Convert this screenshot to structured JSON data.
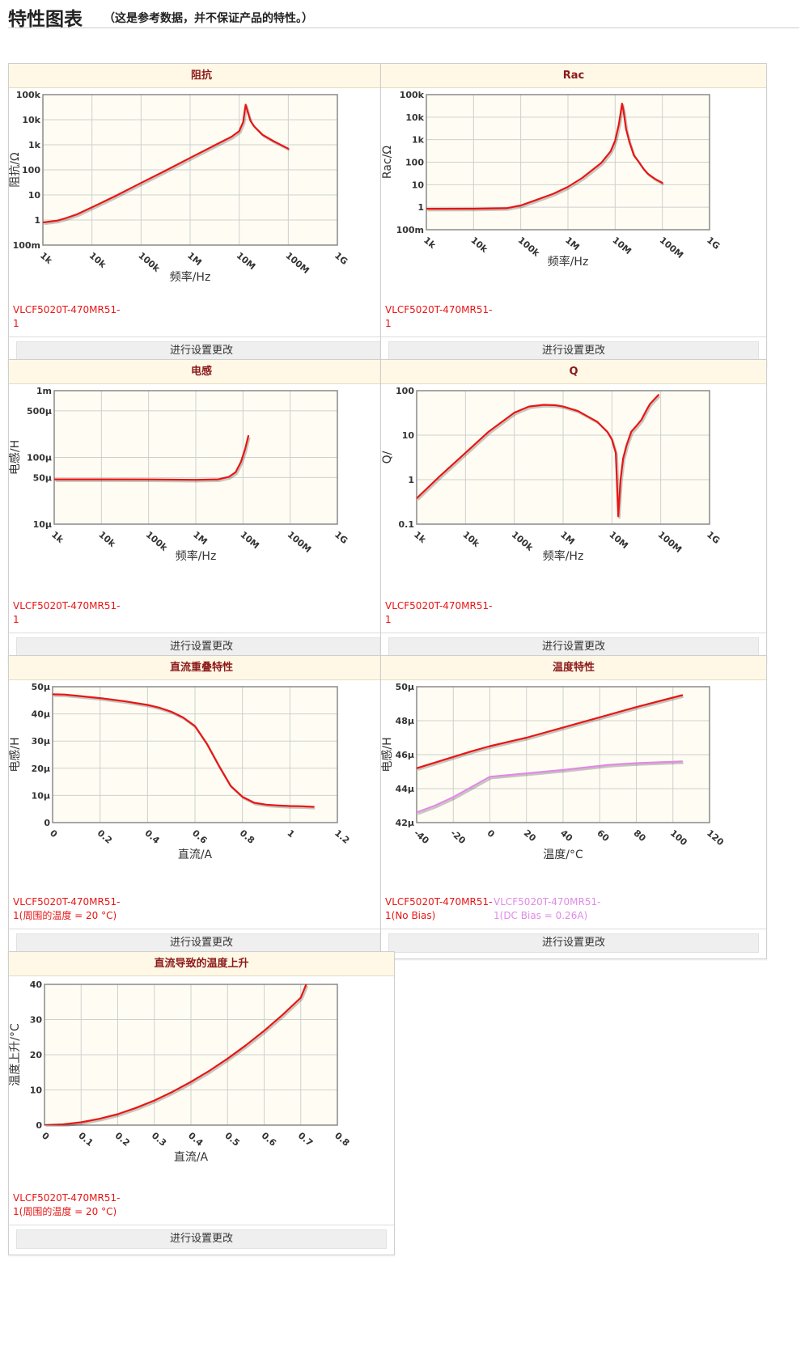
{
  "page": {
    "title": "特性图表",
    "subtitle": "（这是参考数据，并不保证产品的特性。）",
    "button_label": "进行设置更改"
  },
  "colors": {
    "red": "#e81515",
    "violet": "#e08ae6",
    "header_bg": "#fff8e6",
    "title_red": "#8b1a1a",
    "plot_bg": "#fffdf3"
  },
  "panels": [
    {
      "title": "阻抗",
      "legend": [
        {
          "text": "VLCF5020T-470MR51-1",
          "color": "#e81515"
        }
      ]
    },
    {
      "title": "Rac",
      "legend": [
        {
          "text": "VLCF5020T-470MR51-1",
          "color": "#e81515"
        }
      ]
    },
    {
      "title": "电感",
      "legend": [
        {
          "text": "VLCF5020T-470MR51-1",
          "color": "#e81515"
        }
      ]
    },
    {
      "title": "Q",
      "legend": [
        {
          "text": "VLCF5020T-470MR51-1",
          "color": "#e81515"
        }
      ]
    },
    {
      "title": "直流重叠特性",
      "legend": [
        {
          "text": "VLCF5020T-470MR51-1(周围的温度 = 20 °C)",
          "color": "#e81515"
        }
      ]
    },
    {
      "title": "温度特性",
      "legend": [
        {
          "text": "VLCF5020T-470MR51-1(No Bias)",
          "color": "#e81515"
        },
        {
          "text": "VLCF5020T-470MR51-1(DC Bias = 0.26A)",
          "color": "#e08ae6"
        }
      ]
    },
    {
      "title": "直流导致的温度上升",
      "legend": [
        {
          "text": "VLCF5020T-470MR51-1(周围的温度 = 20 °C)",
          "color": "#e81515"
        }
      ]
    }
  ],
  "chart_data": [
    {
      "type": "line",
      "title": "阻抗",
      "xscale": "log",
      "yscale": "log",
      "xlabel": "频率/Hz",
      "ylabel": "阻抗/Ω",
      "xlim": [
        1000,
        1000000000
      ],
      "ylim": [
        0.1,
        100000
      ],
      "xticks": [
        1000,
        10000,
        100000,
        1000000,
        10000000,
        100000000,
        1000000000
      ],
      "xtick_labels": [
        "1k",
        "10k",
        "100k",
        "1M",
        "10M",
        "100M",
        "1G"
      ],
      "yticks": [
        0.1,
        1,
        10,
        100,
        1000,
        10000,
        100000
      ],
      "ytick_labels": [
        "100m",
        "1",
        "10",
        "100",
        "1k",
        "10k",
        "100k"
      ],
      "series": [
        {
          "name": "VLCF5020T-470MR51-1",
          "color": "#e81515",
          "x": [
            1000,
            2000,
            3000,
            5000,
            10000,
            30000,
            100000,
            300000,
            1000000,
            3000000,
            7000000,
            10000000,
            12000000,
            13500000,
            15000000,
            17000000,
            20000000,
            30000000,
            50000000,
            100000000
          ],
          "y": [
            0.8,
            0.95,
            1.2,
            1.7,
            3.2,
            9,
            30,
            89,
            300,
            900,
            2100,
            3500,
            8000,
            40000,
            20000,
            9000,
            5500,
            2500,
            1400,
            700
          ]
        }
      ]
    },
    {
      "type": "line",
      "title": "Rac",
      "xscale": "log",
      "yscale": "log",
      "xlabel": "频率/Hz",
      "ylabel": "Rac/Ω",
      "xlim": [
        1000,
        1000000000
      ],
      "ylim": [
        0.1,
        100000
      ],
      "xticks": [
        1000,
        10000,
        100000,
        1000000,
        10000000,
        100000000,
        1000000000
      ],
      "xtick_labels": [
        "1k",
        "10k",
        "100k",
        "1M",
        "10M",
        "100M",
        "1G"
      ],
      "yticks": [
        0.1,
        1,
        10,
        100,
        1000,
        10000,
        100000
      ],
      "ytick_labels": [
        "100m",
        "1",
        "10",
        "100",
        "1k",
        "10k",
        "100k"
      ],
      "series": [
        {
          "name": "VLCF5020T-470MR51-1",
          "color": "#e81515",
          "x": [
            1000,
            10000,
            50000,
            100000,
            200000,
            500000,
            1000000,
            2000000,
            5000000,
            8000000,
            10000000,
            12000000,
            14000000,
            15000000,
            17000000,
            20000000,
            25000000,
            30000000,
            40000000,
            50000000,
            70000000,
            100000000
          ],
          "y": [
            0.85,
            0.86,
            0.9,
            1.2,
            2,
            4,
            8,
            20,
            90,
            300,
            900,
            5000,
            40000,
            20000,
            3000,
            800,
            200,
            120,
            50,
            30,
            18,
            12
          ]
        }
      ]
    },
    {
      "type": "line",
      "title": "电感",
      "xscale": "log",
      "yscale": "log",
      "xlabel": "频率/Hz",
      "ylabel": "电感/H",
      "xlim": [
        1000,
        1000000000
      ],
      "ylim": [
        1e-05,
        0.001
      ],
      "xticks": [
        1000,
        10000,
        100000,
        1000000,
        10000000,
        100000000,
        1000000000
      ],
      "xtick_labels": [
        "1k",
        "10k",
        "100k",
        "1M",
        "10M",
        "100M",
        "1G"
      ],
      "yticks": [
        1e-05,
        5e-05,
        0.0001,
        0.0005,
        0.001
      ],
      "ytick_labels": [
        "10μ",
        "50μ",
        "100μ",
        "500μ",
        "1m"
      ],
      "series": [
        {
          "name": "VLCF5020T-470MR51-1",
          "color": "#e81515",
          "x": [
            1000,
            10000,
            100000,
            1000000,
            3000000,
            5000000,
            7000000,
            9000000,
            11000000,
            13000000
          ],
          "y": [
            4.7e-05,
            4.7e-05,
            4.68e-05,
            4.62e-05,
            4.7e-05,
            5.1e-05,
            6e-05,
            8.5e-05,
            0.00013,
            0.00021
          ]
        }
      ]
    },
    {
      "type": "line",
      "title": "Q",
      "xscale": "log",
      "yscale": "log",
      "xlabel": "频率/Hz",
      "ylabel": "Q/",
      "xlim": [
        1000,
        1000000000
      ],
      "ylim": [
        0.1,
        100
      ],
      "xticks": [
        1000,
        10000,
        100000,
        1000000,
        10000000,
        100000000,
        1000000000
      ],
      "xtick_labels": [
        "1k",
        "10k",
        "100k",
        "1M",
        "10M",
        "100M",
        "1G"
      ],
      "yticks": [
        0.1,
        1,
        10,
        100
      ],
      "ytick_labels": [
        "0.1",
        "1",
        "10",
        "100"
      ],
      "series": [
        {
          "name": "VLCF5020T-470MR51-1",
          "color": "#e81515",
          "x": [
            1000,
            3000,
            10000,
            30000,
            100000,
            200000,
            400000,
            700000,
            1000000,
            2000000,
            5000000,
            8000000,
            10000000,
            12000000,
            13500000,
            15000000,
            17000000,
            20000000,
            25000000,
            30000000,
            40000000,
            50000000,
            60000000,
            70000000,
            80000000,
            90000000
          ],
          "y": [
            0.38,
            1.2,
            4,
            12,
            32,
            44,
            48,
            47,
            44,
            35,
            20,
            12,
            8,
            4,
            0.15,
            1,
            3,
            6,
            12,
            15,
            22,
            35,
            50,
            60,
            70,
            80
          ]
        }
      ]
    },
    {
      "type": "line",
      "title": "直流重叠特性",
      "xlabel": "直流/A",
      "ylabel": "电感/H",
      "xlim": [
        0,
        1.2
      ],
      "ylim": [
        0,
        5e-05
      ],
      "xticks": [
        0,
        0.2,
        0.4,
        0.6,
        0.8,
        1,
        1.2
      ],
      "xtick_labels": [
        "0",
        "0.2",
        "0.4",
        "0.6",
        "0.8",
        "1",
        "1.2"
      ],
      "yticks": [
        0,
        1e-05,
        2e-05,
        3e-05,
        4e-05,
        5e-05
      ],
      "ytick_labels": [
        "0",
        "10μ",
        "20μ",
        "30μ",
        "40μ",
        "50μ"
      ],
      "series": [
        {
          "name": "VLCF5020T-470MR51-1(周围的温度 = 20 °C)",
          "color": "#e81515",
          "x": [
            0,
            0.05,
            0.1,
            0.2,
            0.3,
            0.4,
            0.45,
            0.5,
            0.55,
            0.6,
            0.65,
            0.7,
            0.75,
            0.8,
            0.85,
            0.9,
            0.95,
            1.0,
            1.05,
            1.1
          ],
          "y": [
            4.72e-05,
            4.71e-05,
            4.67e-05,
            4.58e-05,
            4.47e-05,
            4.33e-05,
            4.23e-05,
            4.08e-05,
            3.87e-05,
            3.55e-05,
            2.9e-05,
            2.1e-05,
            1.35e-05,
            9.5e-06,
            7.3e-06,
            6.6e-06,
            6.3e-06,
            6.1e-06,
            6e-06,
            5.8e-06
          ]
        }
      ]
    },
    {
      "type": "line",
      "title": "温度特性",
      "xlabel": "温度/°C",
      "ylabel": "电感/H",
      "xlim": [
        -40,
        120
      ],
      "ylim": [
        4.2e-05,
        5e-05
      ],
      "xticks": [
        -40,
        -20,
        0,
        20,
        40,
        60,
        80,
        100,
        120
      ],
      "xtick_labels": [
        "-40",
        "-20",
        "0",
        "20",
        "40",
        "60",
        "80",
        "100",
        "120"
      ],
      "yticks": [
        4.2e-05,
        4.4e-05,
        4.6e-05,
        4.8e-05,
        5e-05
      ],
      "ytick_labels": [
        "42μ",
        "44μ",
        "46μ",
        "48μ",
        "50μ"
      ],
      "series": [
        {
          "name": "VLCF5020T-470MR51-1(No Bias)",
          "color": "#e81515",
          "x": [
            -40,
            -25,
            -10,
            0,
            20,
            40,
            60,
            80,
            105
          ],
          "y": [
            4.52e-05,
            4.57e-05,
            4.62e-05,
            4.65e-05,
            4.7e-05,
            4.76e-05,
            4.82e-05,
            4.88e-05,
            4.95e-05
          ]
        },
        {
          "name": "VLCF5020T-470MR51-1(DC Bias = 0.26A)",
          "color": "#e08ae6",
          "x": [
            -40,
            -30,
            -20,
            -10,
            0,
            20,
            40,
            65,
            80,
            105
          ],
          "y": [
            4.26e-05,
            4.3e-05,
            4.35e-05,
            4.41e-05,
            4.47e-05,
            4.49e-05,
            4.51e-05,
            4.54e-05,
            4.55e-05,
            4.56e-05
          ]
        }
      ]
    },
    {
      "type": "line",
      "title": "直流导致的温度上升",
      "xlabel": "直流/A",
      "ylabel": "温度上升/°C",
      "xlim": [
        0,
        0.8
      ],
      "ylim": [
        0,
        40
      ],
      "xticks": [
        0,
        0.1,
        0.2,
        0.3,
        0.4,
        0.5,
        0.6,
        0.7,
        0.8
      ],
      "xtick_labels": [
        "0",
        "0.1",
        "0.2",
        "0.3",
        "0.4",
        "0.5",
        "0.6",
        "0.7",
        "0.8"
      ],
      "yticks": [
        0,
        10,
        20,
        30,
        40
      ],
      "ytick_labels": [
        "0",
        "10",
        "20",
        "30",
        "40"
      ],
      "series": [
        {
          "name": "VLCF5020T-470MR51-1(周围的温度 = 20 °C)",
          "color": "#e81515",
          "x": [
            0,
            0.05,
            0.1,
            0.15,
            0.2,
            0.25,
            0.3,
            0.35,
            0.4,
            0.45,
            0.5,
            0.55,
            0.6,
            0.65,
            0.7,
            0.715
          ],
          "y": [
            0,
            0.2,
            0.8,
            1.8,
            3.1,
            4.9,
            7,
            9.5,
            12.3,
            15.4,
            18.9,
            22.7,
            26.8,
            31.3,
            36.2,
            40
          ]
        }
      ]
    }
  ]
}
